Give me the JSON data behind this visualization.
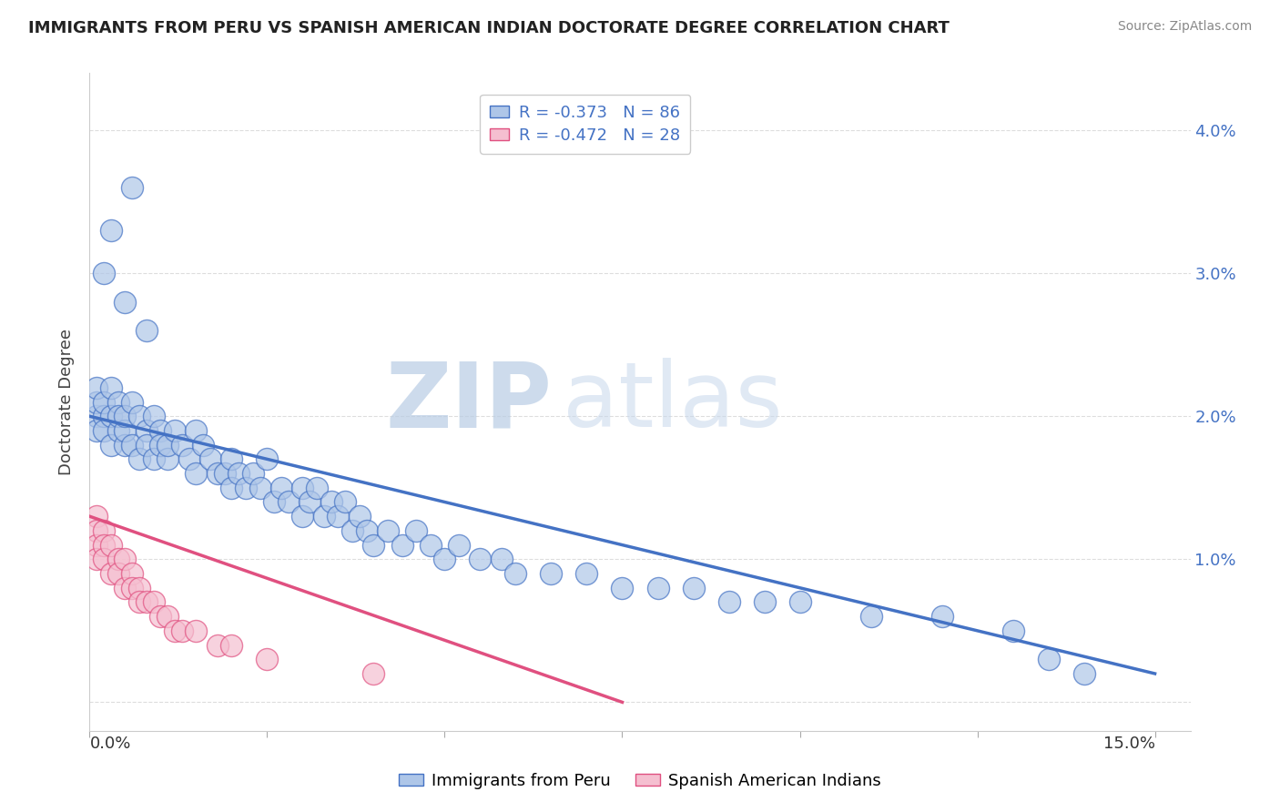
{
  "title": "IMMIGRANTS FROM PERU VS SPANISH AMERICAN INDIAN DOCTORATE DEGREE CORRELATION CHART",
  "source": "Source: ZipAtlas.com",
  "ylabel": "Doctorate Degree",
  "legend_label1": "Immigrants from Peru",
  "legend_label2": "Spanish American Indians",
  "R1": -0.373,
  "N1": 86,
  "R2": -0.472,
  "N2": 28,
  "color1": "#aec6e8",
  "color2": "#f5bfd0",
  "line_color1": "#4472c4",
  "line_color2": "#e05080",
  "watermark_zip": "ZIP",
  "watermark_atlas": "atlas",
  "blue_line_x": [
    0.0,
    0.15
  ],
  "blue_line_y": [
    0.02,
    0.002
  ],
  "pink_line_x": [
    0.0,
    0.075
  ],
  "pink_line_y": [
    0.013,
    0.0
  ],
  "xlim": [
    0.0,
    0.155
  ],
  "ylim": [
    -0.002,
    0.044
  ],
  "peru_x": [
    0.001,
    0.001,
    0.001,
    0.001,
    0.002,
    0.002,
    0.002,
    0.003,
    0.003,
    0.003,
    0.004,
    0.004,
    0.004,
    0.005,
    0.005,
    0.005,
    0.006,
    0.006,
    0.007,
    0.007,
    0.008,
    0.008,
    0.009,
    0.009,
    0.01,
    0.01,
    0.011,
    0.011,
    0.012,
    0.013,
    0.014,
    0.015,
    0.015,
    0.016,
    0.017,
    0.018,
    0.019,
    0.02,
    0.02,
    0.021,
    0.022,
    0.023,
    0.024,
    0.025,
    0.026,
    0.027,
    0.028,
    0.03,
    0.03,
    0.031,
    0.032,
    0.033,
    0.034,
    0.035,
    0.036,
    0.037,
    0.038,
    0.039,
    0.04,
    0.042,
    0.044,
    0.046,
    0.048,
    0.05,
    0.052,
    0.055,
    0.058,
    0.06,
    0.065,
    0.07,
    0.075,
    0.08,
    0.085,
    0.09,
    0.095,
    0.1,
    0.11,
    0.12,
    0.13,
    0.135,
    0.006,
    0.003,
    0.002,
    0.005,
    0.008,
    0.14
  ],
  "peru_y": [
    0.02,
    0.021,
    0.022,
    0.019,
    0.02,
    0.021,
    0.019,
    0.02,
    0.022,
    0.018,
    0.019,
    0.021,
    0.02,
    0.018,
    0.019,
    0.02,
    0.021,
    0.018,
    0.02,
    0.017,
    0.019,
    0.018,
    0.02,
    0.017,
    0.019,
    0.018,
    0.017,
    0.018,
    0.019,
    0.018,
    0.017,
    0.019,
    0.016,
    0.018,
    0.017,
    0.016,
    0.016,
    0.017,
    0.015,
    0.016,
    0.015,
    0.016,
    0.015,
    0.017,
    0.014,
    0.015,
    0.014,
    0.015,
    0.013,
    0.014,
    0.015,
    0.013,
    0.014,
    0.013,
    0.014,
    0.012,
    0.013,
    0.012,
    0.011,
    0.012,
    0.011,
    0.012,
    0.011,
    0.01,
    0.011,
    0.01,
    0.01,
    0.009,
    0.009,
    0.009,
    0.008,
    0.008,
    0.008,
    0.007,
    0.007,
    0.007,
    0.006,
    0.006,
    0.005,
    0.003,
    0.036,
    0.033,
    0.03,
    0.028,
    0.026,
    0.002
  ],
  "indian_x": [
    0.001,
    0.001,
    0.001,
    0.001,
    0.002,
    0.002,
    0.002,
    0.003,
    0.003,
    0.004,
    0.004,
    0.005,
    0.005,
    0.006,
    0.006,
    0.007,
    0.007,
    0.008,
    0.009,
    0.01,
    0.011,
    0.012,
    0.013,
    0.015,
    0.018,
    0.02,
    0.025,
    0.04
  ],
  "indian_y": [
    0.013,
    0.012,
    0.011,
    0.01,
    0.012,
    0.011,
    0.01,
    0.011,
    0.009,
    0.01,
    0.009,
    0.01,
    0.008,
    0.009,
    0.008,
    0.008,
    0.007,
    0.007,
    0.007,
    0.006,
    0.006,
    0.005,
    0.005,
    0.005,
    0.004,
    0.004,
    0.003,
    0.002
  ]
}
